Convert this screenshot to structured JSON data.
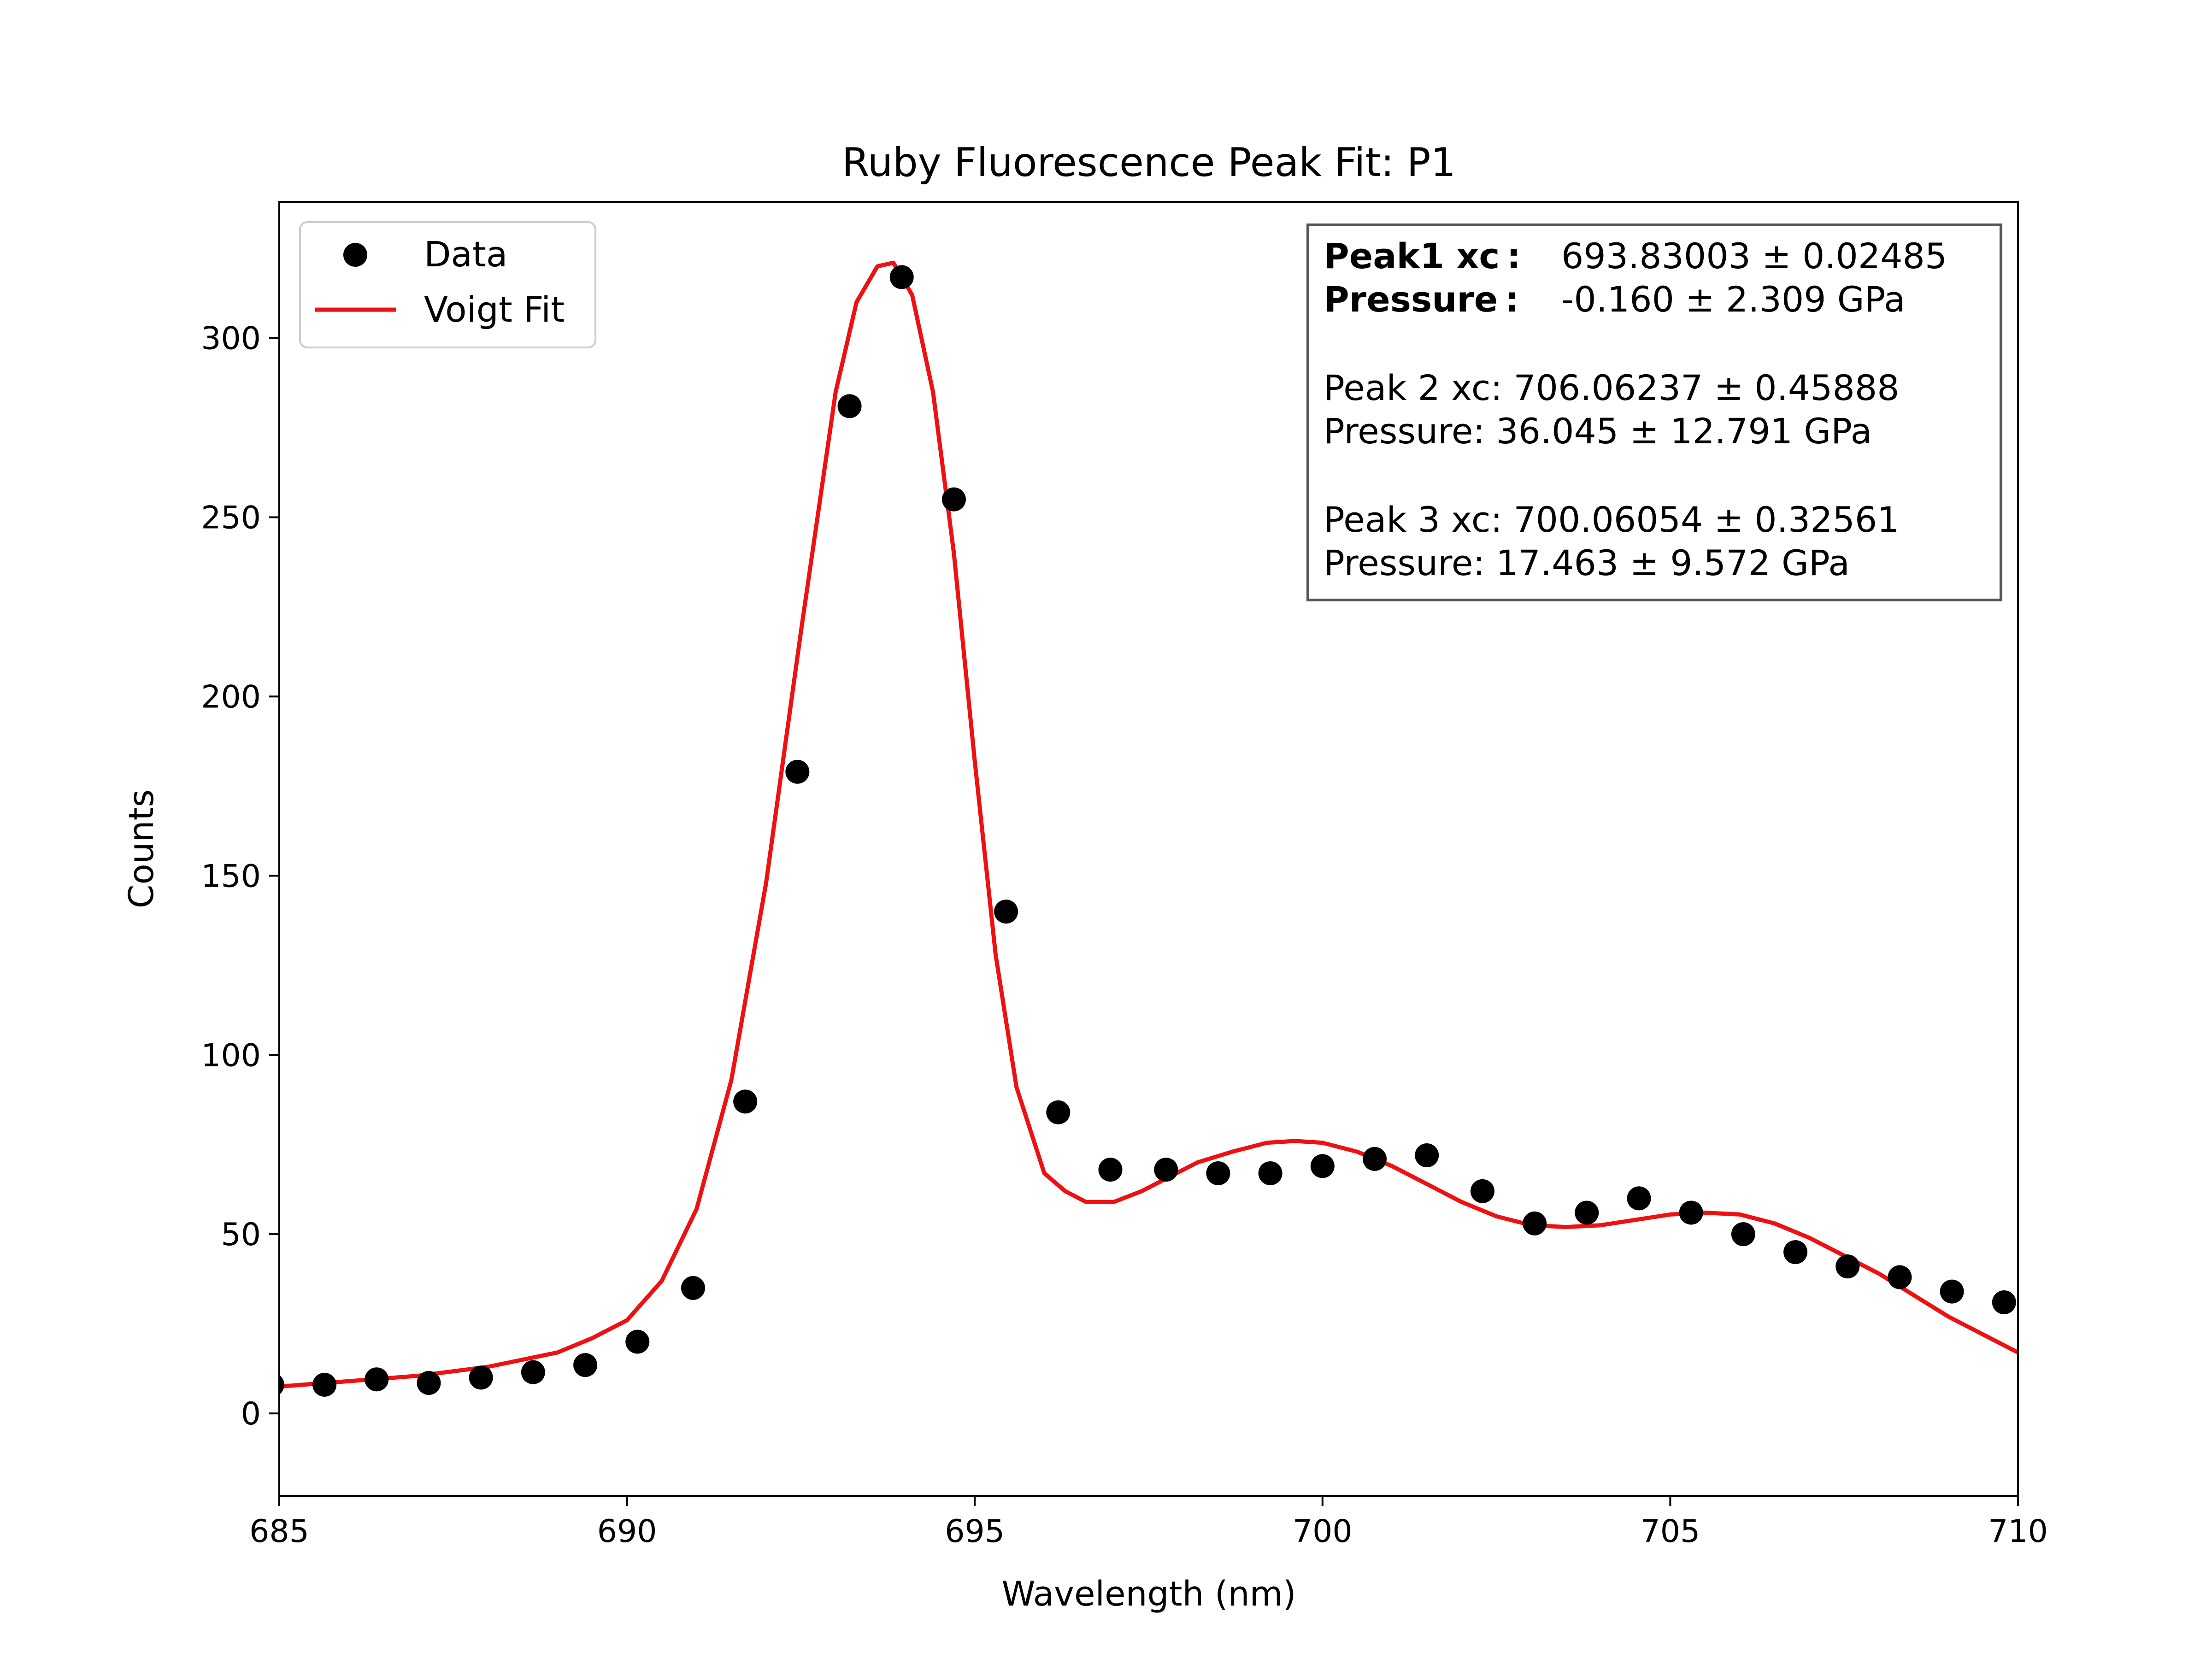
{
  "chart_data": {
    "type": "scatter",
    "title": "Ruby Fluorescence Peak Fit: P1",
    "xlabel": "Wavelength (nm)",
    "ylabel": "Counts",
    "xlim": [
      685,
      710
    ],
    "ylim": [
      -23,
      338
    ],
    "xticks": [
      685,
      690,
      695,
      700,
      705,
      710
    ],
    "yticks": [
      0,
      50,
      100,
      150,
      200,
      250,
      300
    ],
    "grid": false,
    "legend": {
      "position": "top-left",
      "entries": [
        {
          "label": "Data",
          "marker": "dot",
          "color": "#000000"
        },
        {
          "label": "Voigt Fit",
          "marker": "line",
          "color": "#ee1111"
        }
      ]
    },
    "series": [
      {
        "name": "Data",
        "kind": "scatter",
        "color": "#000000",
        "x": [
          684.9,
          685.65,
          686.4,
          687.15,
          687.9,
          688.65,
          689.4,
          690.15,
          690.95,
          691.7,
          692.45,
          693.2,
          693.95,
          694.7,
          695.45,
          696.2,
          696.95,
          697.75,
          698.5,
          699.25,
          700.0,
          700.75,
          701.5,
          702.3,
          703.05,
          703.8,
          704.55,
          705.3,
          706.05,
          706.8,
          707.55,
          708.3,
          709.05,
          709.8
        ],
        "y": [
          8,
          8,
          9.5,
          8.5,
          10,
          11.5,
          13.5,
          20,
          35,
          87,
          179,
          281,
          317,
          255,
          140,
          84,
          68,
          68,
          67,
          67,
          69,
          71,
          72,
          62,
          53,
          56,
          60,
          56,
          50,
          45,
          41,
          38,
          34,
          31
        ]
      },
      {
        "name": "Voigt Fit",
        "kind": "line",
        "color": "#ee1111",
        "x": [
          685.0,
          686.0,
          687.0,
          688.0,
          689.0,
          689.5,
          690.0,
          690.5,
          691.0,
          691.5,
          692.0,
          692.5,
          693.0,
          693.3,
          693.6,
          693.83,
          694.1,
          694.4,
          694.7,
          695.0,
          695.3,
          695.6,
          696.0,
          696.3,
          696.6,
          697.0,
          697.4,
          697.8,
          698.2,
          698.7,
          699.2,
          699.6,
          700.0,
          700.5,
          701.0,
          701.5,
          702.0,
          702.5,
          703.0,
          703.5,
          704.0,
          704.5,
          705.0,
          705.5,
          706.0,
          706.5,
          707.0,
          707.5,
          708.0,
          708.5,
          709.0,
          709.5,
          710.0
        ],
        "y": [
          7.5,
          9,
          10.5,
          13,
          17,
          21,
          26,
          37,
          57,
          93,
          148,
          218,
          285,
          310,
          320,
          321,
          312,
          285,
          240,
          182,
          128,
          91,
          67,
          62,
          59,
          59,
          62,
          66,
          70,
          73,
          75.5,
          76,
          75.5,
          73,
          69,
          64,
          59,
          55,
          52.5,
          52,
          52.5,
          54,
          55.5,
          56,
          55.5,
          53,
          49,
          44,
          39,
          33,
          27,
          22,
          17
        ]
      }
    ],
    "annotation": {
      "rows": [
        {
          "label": "Peak1 xc :",
          "value": "693.83003 ± 0.02485",
          "bold_label": true
        },
        {
          "label": "Pressure :",
          "value": "-0.160 ± 2.309 GPa",
          "bold_label": true
        },
        {
          "text": "Peak 2 xc: 706.06237 ± 0.45888"
        },
        {
          "text": "Pressure: 36.045 ± 12.791 GPa"
        },
        {
          "text": "Peak 3 xc: 700.06054 ± 0.32561"
        },
        {
          "text": "Pressure: 17.463 ± 9.572 GPa"
        }
      ]
    }
  }
}
